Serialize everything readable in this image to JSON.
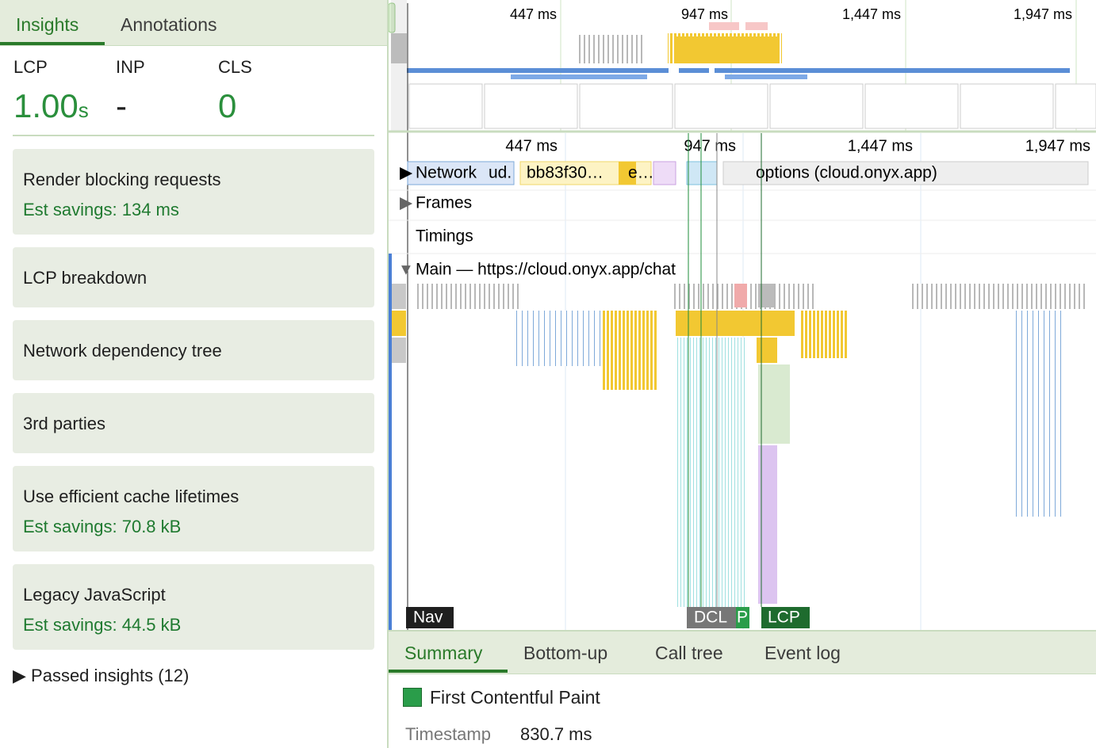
{
  "sidebar": {
    "tabs": [
      "Insights",
      "Annotations"
    ],
    "metrics": [
      {
        "label": "LCP",
        "value": "1.00",
        "unit": "s"
      },
      {
        "label": "INP",
        "value": "-"
      },
      {
        "label": "CLS",
        "value": "0"
      }
    ],
    "insights": [
      {
        "title": "Render blocking requests",
        "savings": "Est savings: 134 ms"
      },
      {
        "title": "LCP breakdown"
      },
      {
        "title": "Network dependency tree"
      },
      {
        "title": "3rd parties"
      },
      {
        "title": "Use efficient cache lifetimes",
        "savings": "Est savings: 70.8 kB"
      },
      {
        "title": "Legacy JavaScript",
        "savings": "Est savings: 44.5 kB"
      }
    ],
    "passed": "Passed insights (12)"
  },
  "timeline": {
    "overview_ticks": [
      "447 ms",
      "947 ms",
      "1,447 ms",
      "1,947 ms"
    ],
    "ticks": [
      "447 ms",
      "947 ms",
      "1,447 ms",
      "1,947 ms"
    ],
    "network": {
      "label": "Network",
      "requests": [
        "ud.",
        "bb83f30…",
        "e…",
        "options (cloud.onyx.app)"
      ]
    },
    "tracks": [
      "Frames",
      "Timings",
      "Main — https://cloud.onyx.app/chat"
    ],
    "markers": [
      "Nav",
      "DCL",
      "P",
      "LCP"
    ]
  },
  "details": {
    "tabs": [
      "Summary",
      "Bottom-up",
      "Call tree",
      "Event log"
    ],
    "title": "First Contentful Paint",
    "field": "Timestamp",
    "value": "830.7 ms"
  }
}
